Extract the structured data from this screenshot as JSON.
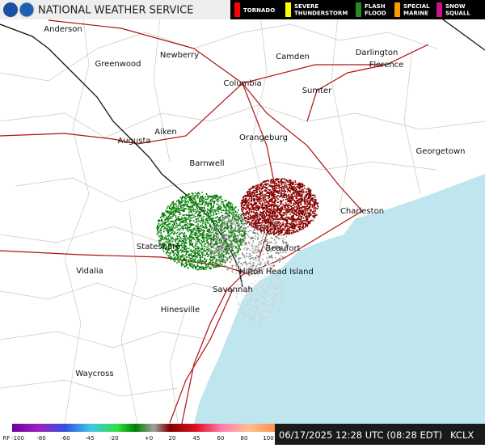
{
  "header": {
    "title": "NATIONAL WEATHER SERVICE",
    "legend": [
      {
        "lines": [
          "TORNADO"
        ],
        "color": "#ff0000"
      },
      {
        "lines": [
          "SEVERE",
          "THUNDERSTORM"
        ],
        "color": "#ffff00"
      },
      {
        "lines": [
          "FLASH",
          "FLOOD"
        ],
        "color": "#228b22"
      },
      {
        "lines": [
          "SPECIAL",
          "MARINE"
        ],
        "color": "#ff9900"
      },
      {
        "lines": [
          "SNOW",
          "SQUALL"
        ],
        "color": "#c71585"
      }
    ]
  },
  "map": {
    "cities": [
      "Anderson",
      "Greenwood",
      "Newberry",
      "Camden",
      "Darlington",
      "Florence",
      "Columbia",
      "Sumter",
      "Aiken",
      "Augusta",
      "Orangeburg",
      "Georgetown",
      "Barnwell",
      "Charleston",
      "Statesboro",
      "Beaufort",
      "Hilton Head Island",
      "Vidalia",
      "Savannah",
      "Hinesville",
      "Waycross"
    ]
  },
  "footer": {
    "scale_labels": [
      "RF",
      "-100",
      "-80",
      "-60",
      "-45",
      "-20",
      "+0",
      "20",
      "45",
      "60",
      "80",
      "100"
    ],
    "timestamp": "06/17/2025 12:28 UTC (08:28 EDT)",
    "station": "KCLX"
  }
}
